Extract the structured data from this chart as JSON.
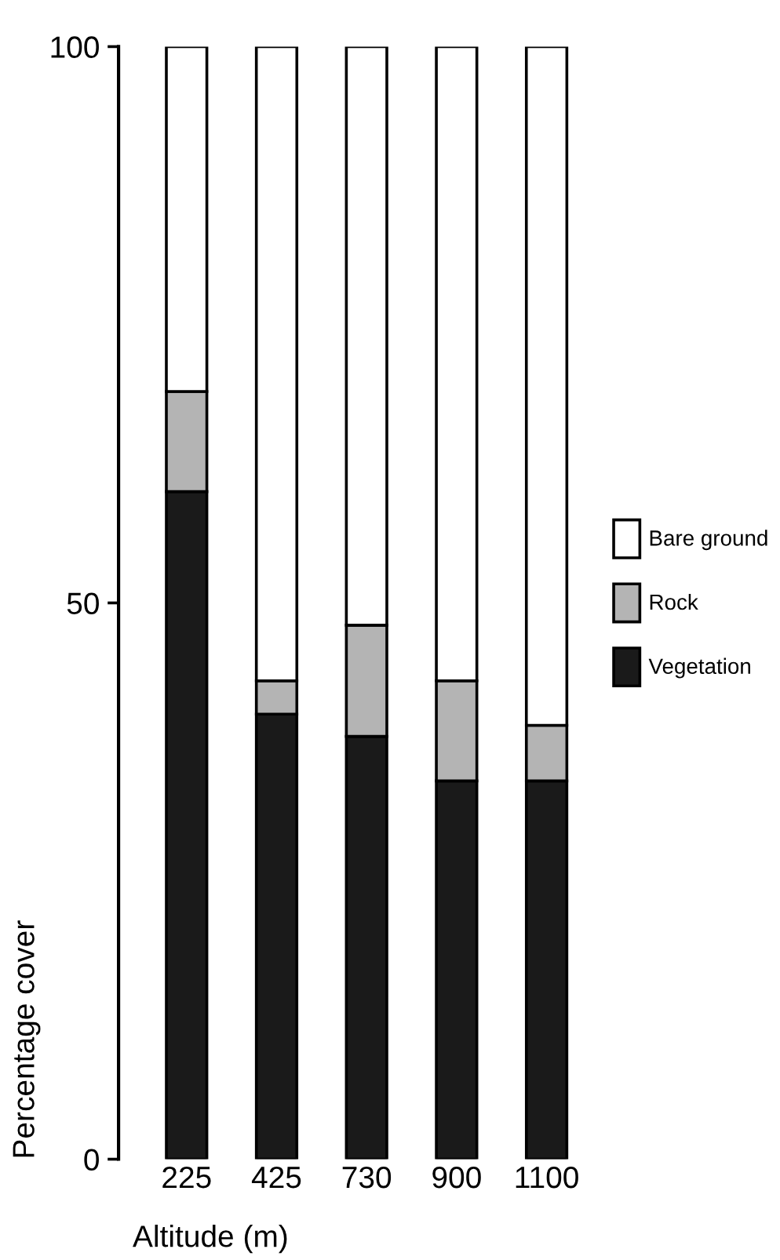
{
  "chart_data": {
    "type": "bar",
    "stacked": true,
    "xlabel": "Altitude (m)",
    "ylabel": "Percentage cover",
    "categories": [
      "225",
      "425",
      "730",
      "900",
      "1100"
    ],
    "series": [
      {
        "name": "Vegetation",
        "color": "#1a1a1a",
        "values": [
          60,
          40,
          38,
          34,
          34
        ]
      },
      {
        "name": "Rock",
        "color": "#b4b4b4",
        "values": [
          9,
          3,
          10,
          9,
          5
        ]
      },
      {
        "name": "Bare ground",
        "color": "#ffffff",
        "values": [
          31,
          57,
          52,
          57,
          61
        ]
      }
    ],
    "ylim": [
      0,
      100
    ],
    "yticks": [
      0,
      50,
      100
    ],
    "grid": false,
    "legend": "right"
  }
}
